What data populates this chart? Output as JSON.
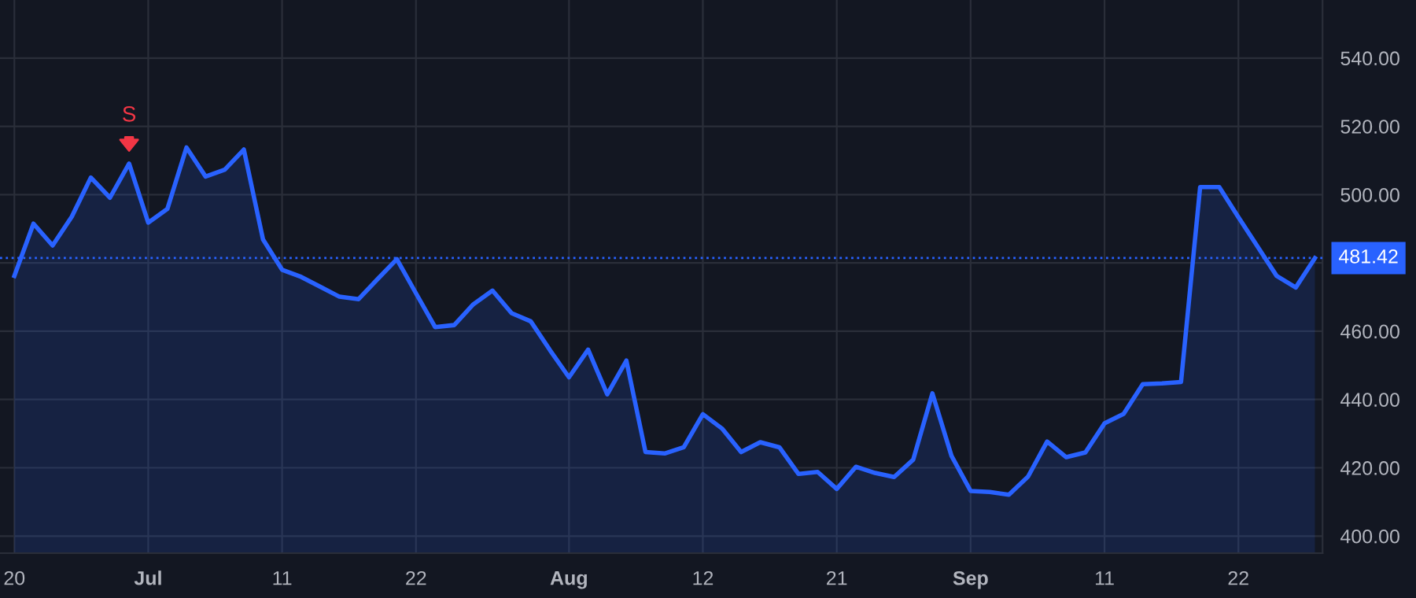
{
  "chart_data": {
    "type": "area",
    "categories": [
      "20",
      null,
      null,
      null,
      null,
      null,
      null,
      "Jul",
      null,
      null,
      null,
      null,
      null,
      null,
      "11",
      null,
      null,
      null,
      null,
      null,
      null,
      "22",
      null,
      null,
      null,
      null,
      null,
      null,
      null,
      "Aug",
      null,
      null,
      null,
      null,
      null,
      null,
      "12",
      null,
      null,
      null,
      null,
      null,
      null,
      "21",
      null,
      null,
      null,
      null,
      null,
      null,
      "Sep",
      null,
      null,
      null,
      null,
      null,
      null,
      "11",
      null,
      null,
      null,
      null,
      null,
      null,
      "22",
      null,
      null,
      null,
      null
    ],
    "series": [
      {
        "color": "#2962ff",
        "values": [
          476.2,
          491.5,
          485.1,
          493.5,
          505,
          499.1,
          509.1,
          491.8,
          495.8,
          513.8,
          505.3,
          507.3,
          513.2,
          486.9,
          478,
          475.9,
          473,
          470.1,
          469.4,
          475.3,
          481.1,
          471.1,
          461.2,
          461.8,
          467.9,
          471.9,
          465.3,
          462.9,
          454.5,
          446.5,
          454.6,
          441.5,
          451.4,
          424.6,
          424.2,
          426,
          435.7,
          431.5,
          424.6,
          427.5,
          426,
          418.2,
          418.8,
          413.8,
          420.3,
          418.5,
          417.3,
          422.4,
          441.8,
          423.5,
          413.2,
          412.9,
          412.1,
          417.4,
          427.7,
          423.1,
          424.5,
          433,
          435.8,
          444.5,
          444.7,
          445.1,
          502.2,
          502.2,
          493.4,
          484.8,
          476.2,
          472.8,
          481.4
        ]
      }
    ],
    "ylim": [
      395,
      557
    ],
    "yticks": [
      {
        "value": 400,
        "label": "400.00"
      },
      {
        "value": 420,
        "label": "420.00"
      },
      {
        "value": 440,
        "label": "440.00"
      },
      {
        "value": 460,
        "label": "460.00"
      },
      {
        "value": 480,
        "label": null
      },
      {
        "value": 500,
        "label": "500.00"
      },
      {
        "value": 520,
        "label": "520.00"
      },
      {
        "value": 540,
        "label": "540.00"
      }
    ],
    "ref_lines": [
      {
        "axis": "y",
        "value": 481.42,
        "label": "481.42",
        "color": "#2962ff",
        "line_style": "dotted"
      }
    ],
    "annotations": [
      {
        "text": "S",
        "y": 509.1
      }
    ],
    "grid": true,
    "marker": "none",
    "line_style": "solid"
  }
}
